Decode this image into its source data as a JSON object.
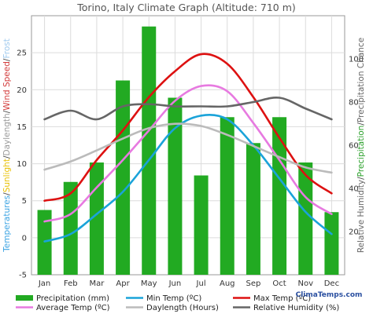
{
  "chart_data": {
    "type": "bar",
    "title": "Torino, Italy Climate Graph (Altitude: 710 m)",
    "categories": [
      "Jan",
      "Feb",
      "Mar",
      "Apr",
      "May",
      "Jun",
      "Jul",
      "Aug",
      "Sep",
      "Oct",
      "Nov",
      "Dec"
    ],
    "left_axis": {
      "ylim": [
        -5,
        30
      ],
      "ticks": [
        -5,
        0,
        5,
        10,
        15,
        20,
        25
      ],
      "label_parts": [
        {
          "text": "Temperatures",
          "color": "#3aa3e3"
        },
        {
          "text": "/",
          "color": "#444444"
        },
        {
          "text": "Sunlight",
          "color": "#e8c000"
        },
        {
          "text": "/",
          "color": "#444444"
        },
        {
          "text": "Daylength",
          "color": "#999999"
        },
        {
          "text": "/",
          "color": "#444444"
        },
        {
          "text": "Wind Speed",
          "color": "#d23a3a"
        },
        {
          "text": "/",
          "color": "#444444"
        },
        {
          "text": "Frost",
          "color": "#9ec9ee"
        }
      ]
    },
    "right_axis": {
      "ylim": [
        0,
        120
      ],
      "ticks": [
        20,
        40,
        60,
        80,
        100
      ],
      "label_parts": [
        {
          "text": "Relative Humidity",
          "color": "#666666"
        },
        {
          "text": "/",
          "color": "#444444"
        },
        {
          "text": "Precipitation",
          "color": "#2aa02a"
        },
        {
          "text": "/",
          "color": "#444444"
        },
        {
          "text": "Precipitation Chance",
          "color": "#666666"
        }
      ]
    },
    "series": [
      {
        "name": "Precipitation (mm)",
        "kind": "bar",
        "axis": "right",
        "color": "#22aa22",
        "values": [
          30,
          43,
          52,
          90,
          115,
          82,
          46,
          73,
          61,
          73,
          52,
          29
        ]
      },
      {
        "name": "Min Temp (ºC)",
        "kind": "line",
        "axis": "left",
        "color": "#1aa3d9",
        "values": [
          -0.5,
          0.5,
          3.2,
          6.2,
          10.5,
          14.8,
          16.5,
          16.0,
          12.5,
          8.0,
          3.5,
          0.5
        ]
      },
      {
        "name": "Max Temp (ºC)",
        "kind": "line",
        "axis": "left",
        "color": "#dd1111",
        "values": [
          5.0,
          6.0,
          10.5,
          14.5,
          19.0,
          22.5,
          24.8,
          23.5,
          19.0,
          13.5,
          8.5,
          6.0
        ]
      },
      {
        "name": "Average Temp (ºC)",
        "kind": "line",
        "axis": "left",
        "color": "#e77ae0",
        "values": [
          2.2,
          3.2,
          6.8,
          10.5,
          14.5,
          18.5,
          20.5,
          19.8,
          15.5,
          10.5,
          5.5,
          3.2
        ]
      },
      {
        "name": "Daylength (Hours)",
        "kind": "line",
        "axis": "left",
        "color": "#bbbbbb",
        "values": [
          9.2,
          10.3,
          11.8,
          13.4,
          14.8,
          15.4,
          15.1,
          13.9,
          12.4,
          10.9,
          9.5,
          8.8
        ]
      },
      {
        "name": "Relative Humidity (%)",
        "kind": "line",
        "axis": "right",
        "color": "#666666",
        "values": [
          72,
          76,
          72,
          78,
          79,
          78,
          78,
          78,
          80,
          82,
          77,
          72
        ]
      }
    ],
    "brand": "ClimaTemps.com"
  }
}
